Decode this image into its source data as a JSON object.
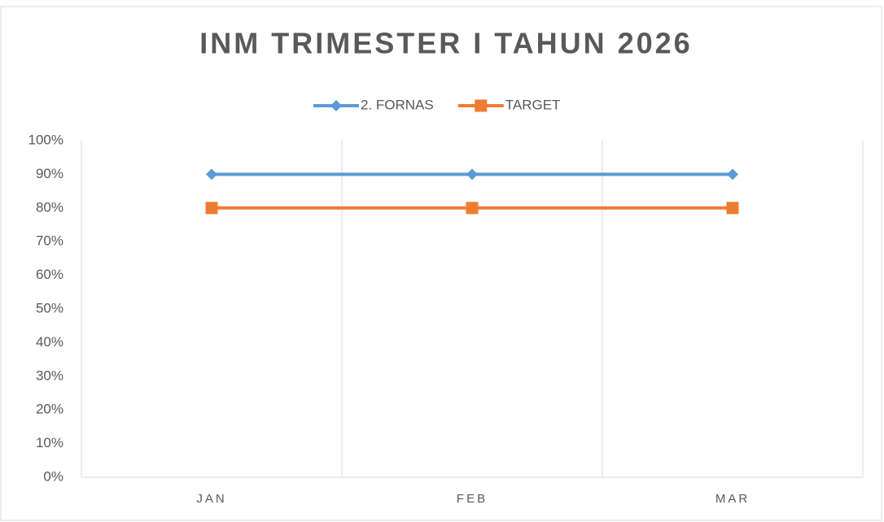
{
  "chart_data": {
    "type": "line",
    "title": "INM TRIMESTER I TAHUN 2026",
    "categories": [
      "JAN",
      "FEB",
      "MAR"
    ],
    "series": [
      {
        "name": "2. FORNAS",
        "color": "#5b9bd5",
        "marker": "diamond",
        "values": [
          90,
          90,
          90
        ]
      },
      {
        "name": "TARGET",
        "color": "#ed7d31",
        "marker": "square",
        "values": [
          80,
          80,
          80
        ]
      }
    ],
    "ylim": [
      0,
      100
    ],
    "yticks": [
      {
        "value": 0,
        "label": "0%"
      },
      {
        "value": 10,
        "label": "10%"
      },
      {
        "value": 20,
        "label": "20%"
      },
      {
        "value": 30,
        "label": "30%"
      },
      {
        "value": 40,
        "label": "40%"
      },
      {
        "value": 50,
        "label": "50%"
      },
      {
        "value": 60,
        "label": "60%"
      },
      {
        "value": 70,
        "label": "70%"
      },
      {
        "value": 80,
        "label": "80%"
      },
      {
        "value": 90,
        "label": "90%"
      },
      {
        "value": 100,
        "label": "100%"
      }
    ],
    "legend": "top"
  }
}
